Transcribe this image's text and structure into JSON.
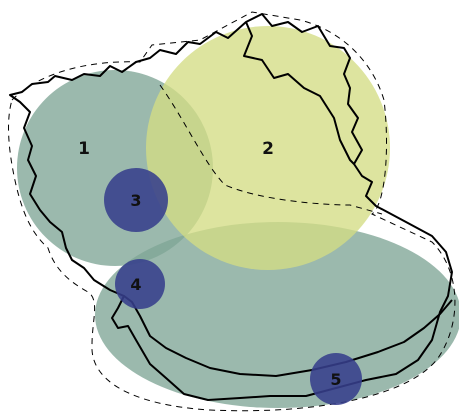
{
  "map": {
    "colors": {
      "background": "#ffffff",
      "zone_green": "#7fa596",
      "zone_yellow": "#d3dc84",
      "point_blue": "#373f8c",
      "boundary": "#000000",
      "outline_dashed": "#000000"
    },
    "zones": [
      {
        "label": "1",
        "color": "#7fa596"
      },
      {
        "label": "2",
        "color": "#d3dc84"
      },
      {
        "label": "",
        "color": "#7fa596"
      }
    ],
    "points": [
      {
        "label": "3",
        "color": "#373f8c"
      },
      {
        "label": "4",
        "color": "#373f8c"
      },
      {
        "label": "5",
        "color": "#373f8c"
      }
    ]
  }
}
